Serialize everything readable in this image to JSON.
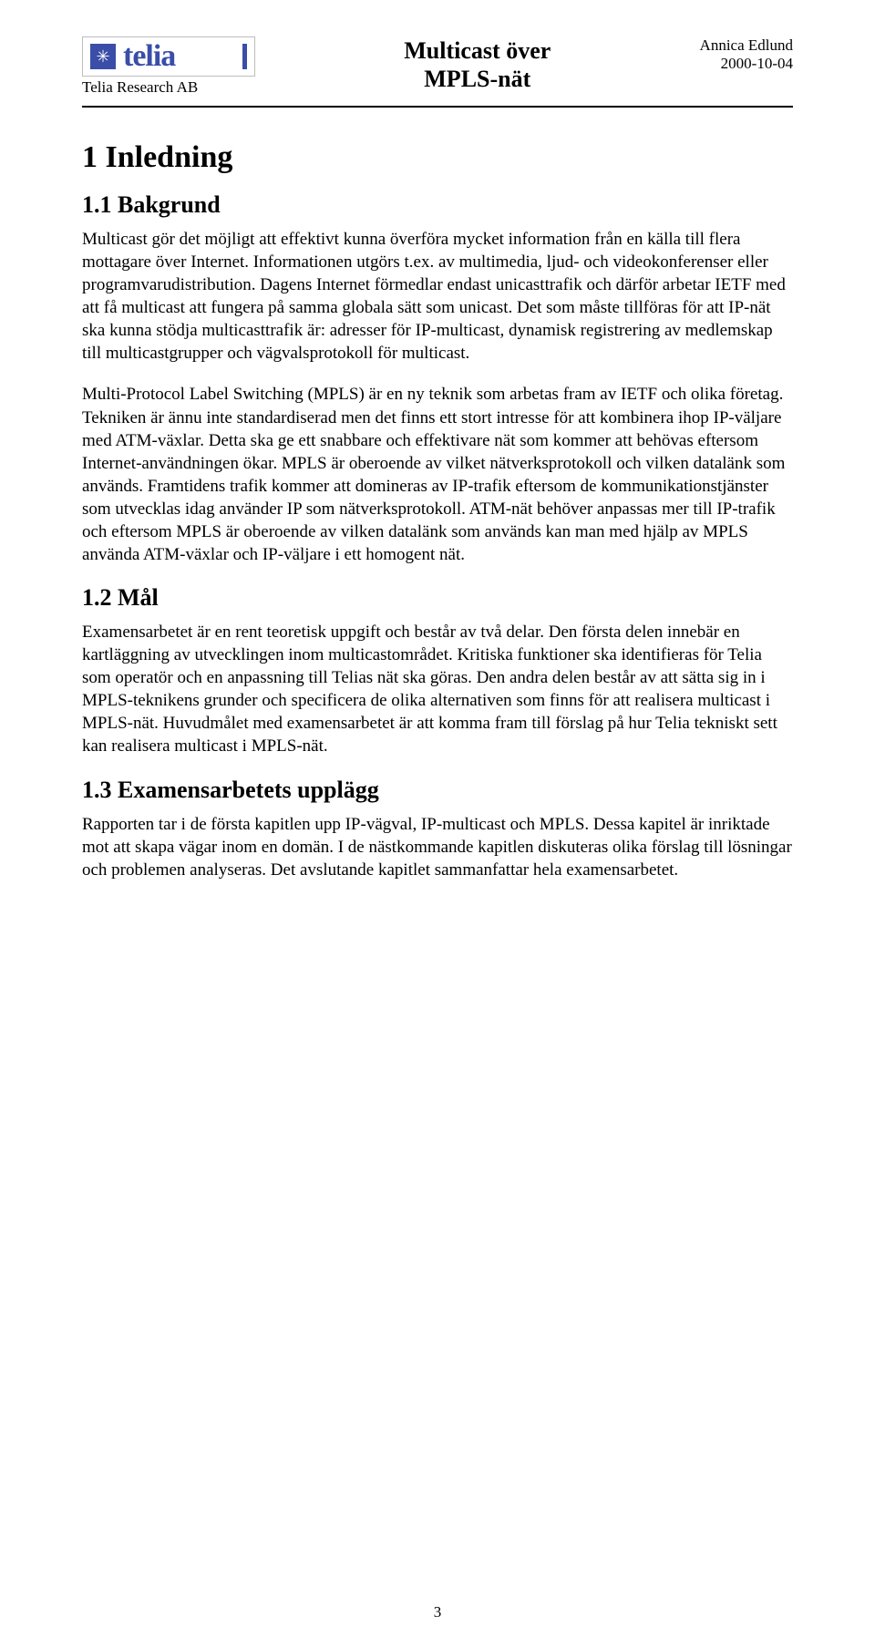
{
  "header": {
    "logo": {
      "brand_text": "telia",
      "brand_color": "#3a4ea8",
      "icon_glyph": "✳"
    },
    "tagline": "Telia Research AB",
    "title_line1": "Multicast över",
    "title_line2": "MPLS-nät",
    "author": "Annica Edlund",
    "date": "2000-10-04"
  },
  "sections": {
    "s1": {
      "heading": "1 Inledning",
      "s1_1": {
        "heading": "1.1 Bakgrund",
        "p1": "Multicast gör det möjligt att effektivt kunna överföra mycket information från en källa till flera mottagare över Internet. Informationen utgörs t.ex. av multimedia, ljud- och videokonferenser eller programvarudistribution. Dagens Internet förmedlar endast unicasttrafik och därför arbetar IETF med att få multicast att fungera på samma globala sätt som unicast. Det som måste tillföras för att IP-nät ska kunna stödja multicasttrafik är: adresser för IP-multicast, dynamisk registrering av medlemskap till multicastgrupper och vägvalsprotokoll för multicast.",
        "p2": "Multi-Protocol Label Switching (MPLS) är en ny teknik som arbetas fram av IETF och olika företag. Tekniken är ännu inte standardiserad men det finns ett stort intresse för att kombinera ihop IP-väljare med ATM-växlar. Detta ska ge ett snabbare och effektivare nät som kommer att behövas eftersom Internet-användningen ökar. MPLS är oberoende av vilket nätverksprotokoll och vilken datalänk som används. Framtidens trafik kommer att domineras av IP-trafik eftersom de kommunikationstjänster som utvecklas idag använder IP som nätverksprotokoll. ATM-nät behöver anpassas mer till IP-trafik och eftersom MPLS är oberoende av vilken datalänk som används kan man med hjälp av MPLS använda ATM-växlar och IP-väljare i ett homogent nät."
      },
      "s1_2": {
        "heading": "1.2 Mål",
        "p1": "Examensarbetet är en rent teoretisk uppgift och består av två delar. Den första delen innebär en kartläggning av utvecklingen inom multicastområdet. Kritiska funktioner ska identifieras för Telia som operatör och en anpassning till Telias nät ska göras. Den andra delen består av att sätta sig in i MPLS-teknikens grunder och specificera de olika alternativen som finns för att realisera multicast i MPLS-nät. Huvudmålet med examensarbetet är att komma fram till förslag på hur Telia tekniskt sett kan realisera multicast i MPLS-nät."
      },
      "s1_3": {
        "heading": "1.3 Examensarbetets upplägg",
        "p1": "Rapporten tar i de första kapitlen upp IP-vägval, IP-multicast och MPLS. Dessa kapitel är inriktade mot att skapa vägar inom en domän. I de nästkommande kapitlen diskuteras olika förslag till lösningar och problemen analyseras. Det avslutande kapitlet sammanfattar hela examensarbetet."
      }
    }
  },
  "page_number": "3"
}
